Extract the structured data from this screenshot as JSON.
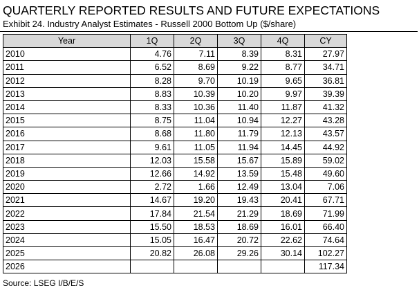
{
  "title": "QUARTERLY REPORTED RESULTS AND FUTURE EXPECTATIONS",
  "subtitle": "Exhibit 24. Industry Analyst Estimates - Russell 2000 Bottom Up ($/share)",
  "table": {
    "header": [
      "Year",
      "1Q",
      "2Q",
      "3Q",
      "4Q",
      "CY"
    ],
    "rows": [
      [
        "2010",
        "4.76",
        "7.11",
        "8.39",
        "8.31",
        "27.97"
      ],
      [
        "2011",
        "6.52",
        "8.69",
        "9.22",
        "8.77",
        "34.71"
      ],
      [
        "2012",
        "8.28",
        "9.70",
        "10.19",
        "9.65",
        "36.81"
      ],
      [
        "2013",
        "8.83",
        "10.39",
        "10.20",
        "9.97",
        "39.39"
      ],
      [
        "2014",
        "8.33",
        "10.36",
        "11.40",
        "11.87",
        "41.32"
      ],
      [
        "2015",
        "8.75",
        "11.04",
        "10.94",
        "12.27",
        "43.28"
      ],
      [
        "2016",
        "8.68",
        "11.80",
        "11.79",
        "12.13",
        "43.57"
      ],
      [
        "2017",
        "9.61",
        "11.05",
        "11.94",
        "14.45",
        "44.92"
      ],
      [
        "2018",
        "12.03",
        "15.58",
        "15.67",
        "15.89",
        "59.02"
      ],
      [
        "2019",
        "12.66",
        "14.92",
        "13.59",
        "15.48",
        "49.60"
      ],
      [
        "2020",
        "2.72",
        "1.66",
        "12.49",
        "13.04",
        "7.06"
      ],
      [
        "2021",
        "14.67",
        "19.20",
        "19.43",
        "20.41",
        "67.71"
      ],
      [
        "2022",
        "17.84",
        "21.54",
        "21.29",
        "18.69",
        "71.99"
      ],
      [
        "2023",
        "15.50",
        "18.53",
        "18.69",
        "16.01",
        "66.40"
      ],
      [
        "2024",
        "15.05",
        "16.47",
        "20.72",
        "22.62",
        "74.64"
      ],
      [
        "2025",
        "20.82",
        "26.08",
        "29.26",
        "30.14",
        "102.27"
      ],
      [
        "2026",
        null,
        null,
        null,
        null,
        "117.34"
      ]
    ]
  },
  "source": "Source: LSEG I/B/E/S"
}
